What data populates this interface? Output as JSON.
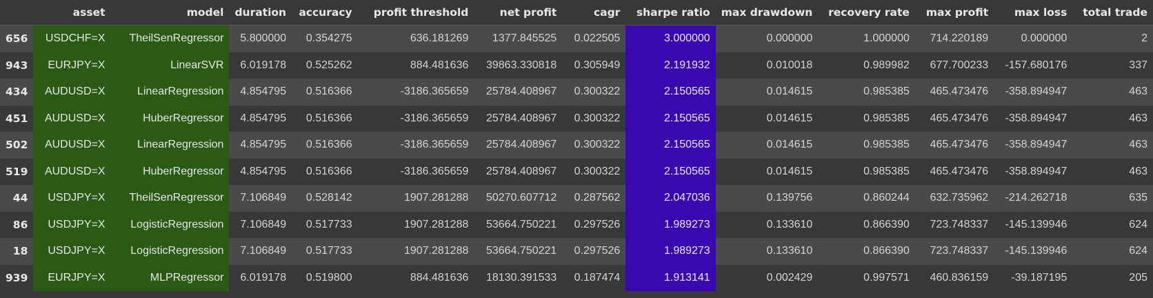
{
  "table": {
    "columns": [
      "asset",
      "model",
      "duration",
      "accuracy",
      "profit threshold",
      "net profit",
      "cagr",
      "sharpe ratio",
      "max drawdown",
      "recovery rate",
      "max profit",
      "max loss",
      "total trade"
    ],
    "highlight_colors": {
      "index_columns": "#2a5a14",
      "sharpe_ratio": "#3a08b0"
    },
    "rows": [
      {
        "index": "656",
        "cells": [
          "USDCHF=X",
          "TheilSenRegressor",
          "5.800000",
          "0.354275",
          "636.181269",
          "1377.845525",
          "0.022505",
          "3.000000",
          "0.000000",
          "1.000000",
          "714.220189",
          "0.000000",
          "2"
        ]
      },
      {
        "index": "943",
        "cells": [
          "EURJPY=X",
          "LinearSVR",
          "6.019178",
          "0.525262",
          "884.481636",
          "39863.330818",
          "0.305949",
          "2.191932",
          "0.010018",
          "0.989982",
          "677.700233",
          "-157.680176",
          "337"
        ]
      },
      {
        "index": "434",
        "cells": [
          "AUDUSD=X",
          "LinearRegression",
          "4.854795",
          "0.516366",
          "-3186.365659",
          "25784.408967",
          "0.300322",
          "2.150565",
          "0.014615",
          "0.985385",
          "465.473476",
          "-358.894947",
          "463"
        ]
      },
      {
        "index": "451",
        "cells": [
          "AUDUSD=X",
          "HuberRegressor",
          "4.854795",
          "0.516366",
          "-3186.365659",
          "25784.408967",
          "0.300322",
          "2.150565",
          "0.014615",
          "0.985385",
          "465.473476",
          "-358.894947",
          "463"
        ]
      },
      {
        "index": "502",
        "cells": [
          "AUDUSD=X",
          "LinearRegression",
          "4.854795",
          "0.516366",
          "-3186.365659",
          "25784.408967",
          "0.300322",
          "2.150565",
          "0.014615",
          "0.985385",
          "465.473476",
          "-358.894947",
          "463"
        ]
      },
      {
        "index": "519",
        "cells": [
          "AUDUSD=X",
          "HuberRegressor",
          "4.854795",
          "0.516366",
          "-3186.365659",
          "25784.408967",
          "0.300322",
          "2.150565",
          "0.014615",
          "0.985385",
          "465.473476",
          "-358.894947",
          "463"
        ]
      },
      {
        "index": "44",
        "cells": [
          "USDJPY=X",
          "TheilSenRegressor",
          "7.106849",
          "0.528142",
          "1907.281288",
          "50270.607712",
          "0.287562",
          "2.047036",
          "0.139756",
          "0.860244",
          "632.735962",
          "-214.262718",
          "635"
        ]
      },
      {
        "index": "86",
        "cells": [
          "USDJPY=X",
          "LogisticRegression",
          "7.106849",
          "0.517733",
          "1907.281288",
          "53664.750221",
          "0.297526",
          "1.989273",
          "0.133610",
          "0.866390",
          "723.748337",
          "-145.139946",
          "624"
        ]
      },
      {
        "index": "18",
        "cells": [
          "USDJPY=X",
          "LogisticRegression",
          "7.106849",
          "0.517733",
          "1907.281288",
          "53664.750221",
          "0.297526",
          "1.989273",
          "0.133610",
          "0.866390",
          "723.748337",
          "-145.139946",
          "624"
        ]
      },
      {
        "index": "939",
        "cells": [
          "EURJPY=X",
          "MLPRegressor",
          "6.019178",
          "0.519800",
          "884.481636",
          "18130.391533",
          "0.187474",
          "1.913141",
          "0.002429",
          "0.997571",
          "460.836159",
          "-39.187195",
          "205"
        ]
      }
    ]
  }
}
